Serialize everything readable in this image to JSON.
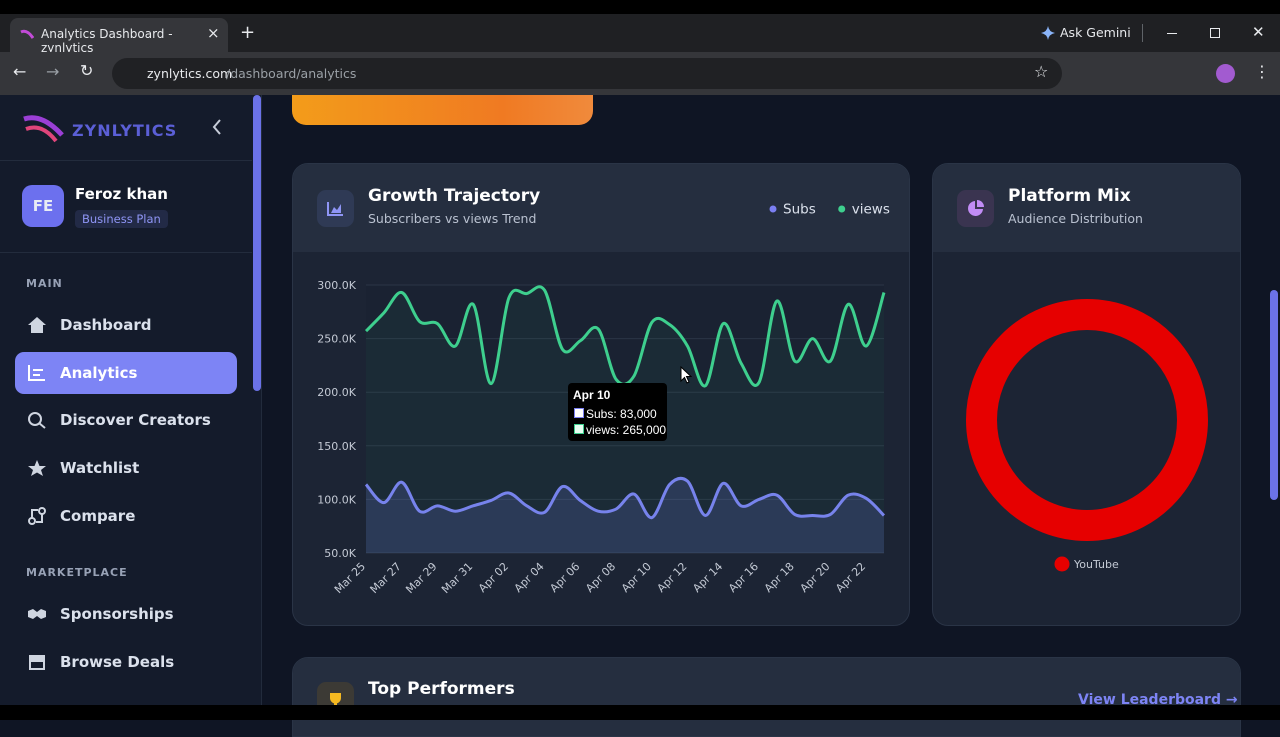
{
  "browser": {
    "tab_title": "Analytics Dashboard - zynlytics",
    "gemini": "Ask Gemini",
    "url_host": "zynlytics.com",
    "url_path": "/dashboard/analytics"
  },
  "sidebar": {
    "logo": "ZYNLYTICS",
    "avatar": "FE",
    "user_name": "Feroz khan",
    "plan": "Business Plan",
    "sections": [
      {
        "title": "MAIN",
        "items": [
          "Dashboard",
          "Analytics",
          "Discover Creators",
          "Watchlist",
          "Compare"
        ]
      },
      {
        "title": "MARKETPLACE",
        "items": [
          "Sponsorships",
          "Browse Deals"
        ]
      }
    ]
  },
  "top_performers": {
    "title": "Top Performers",
    "link": "View Leaderboard →"
  },
  "chart_data": [
    {
      "type": "line",
      "title": "Growth Trajectory",
      "subtitle": "Subscribers vs views Trend",
      "categories": [
        "Mar 25",
        null,
        "Mar 27",
        null,
        "Mar 29",
        null,
        "Mar 31",
        null,
        "Apr 02",
        null,
        "Apr 04",
        null,
        "Apr 06",
        null,
        "Apr 08",
        null,
        "Apr 10",
        null,
        "Apr 12",
        null,
        "Apr 14",
        null,
        "Apr 16",
        null,
        "Apr 18",
        null,
        "Apr 20",
        null,
        "Apr 22",
        null
      ],
      "series": [
        {
          "name": "Subs",
          "color": "#7b7ff2",
          "values": [
            114000,
            97000,
            116000,
            89000,
            94000,
            89000,
            94000,
            99000,
            106000,
            94000,
            88000,
            112000,
            99000,
            89000,
            91000,
            105000,
            83000,
            114000,
            117000,
            85000,
            115000,
            94000,
            100000,
            104000,
            86000,
            85000,
            86000,
            104000,
            101000,
            85000
          ]
        },
        {
          "name": "views",
          "color": "#3ecf8e",
          "values": [
            257000,
            274000,
            293000,
            266000,
            264000,
            243000,
            282000,
            208000,
            288000,
            292000,
            295000,
            240000,
            248000,
            259000,
            212000,
            215000,
            265000,
            263000,
            243000,
            206000,
            264000,
            227000,
            209000,
            285000,
            229000,
            250000,
            229000,
            282000,
            243000,
            293000
          ]
        }
      ],
      "ylim": [
        50000,
        300000
      ],
      "yticks": [
        {
          "value": 50000,
          "label": "50.0K"
        },
        {
          "value": 100000,
          "label": "100.0K"
        },
        {
          "value": 150000,
          "label": "150.0K"
        },
        {
          "value": 200000,
          "label": "200.0K"
        },
        {
          "value": 250000,
          "label": "250.0K"
        },
        {
          "value": 300000,
          "label": "300.0K"
        }
      ],
      "grid": true,
      "tooltip": {
        "title": "Apr 10",
        "items": [
          "Subs: 83,000",
          "views: 265,000"
        ]
      }
    },
    {
      "type": "doughnut",
      "title": "Platform Mix",
      "subtitle": "Audience Distribution",
      "categories": [
        "YouTube"
      ],
      "values": [
        100
      ],
      "colors": [
        "#e60000"
      ]
    }
  ]
}
